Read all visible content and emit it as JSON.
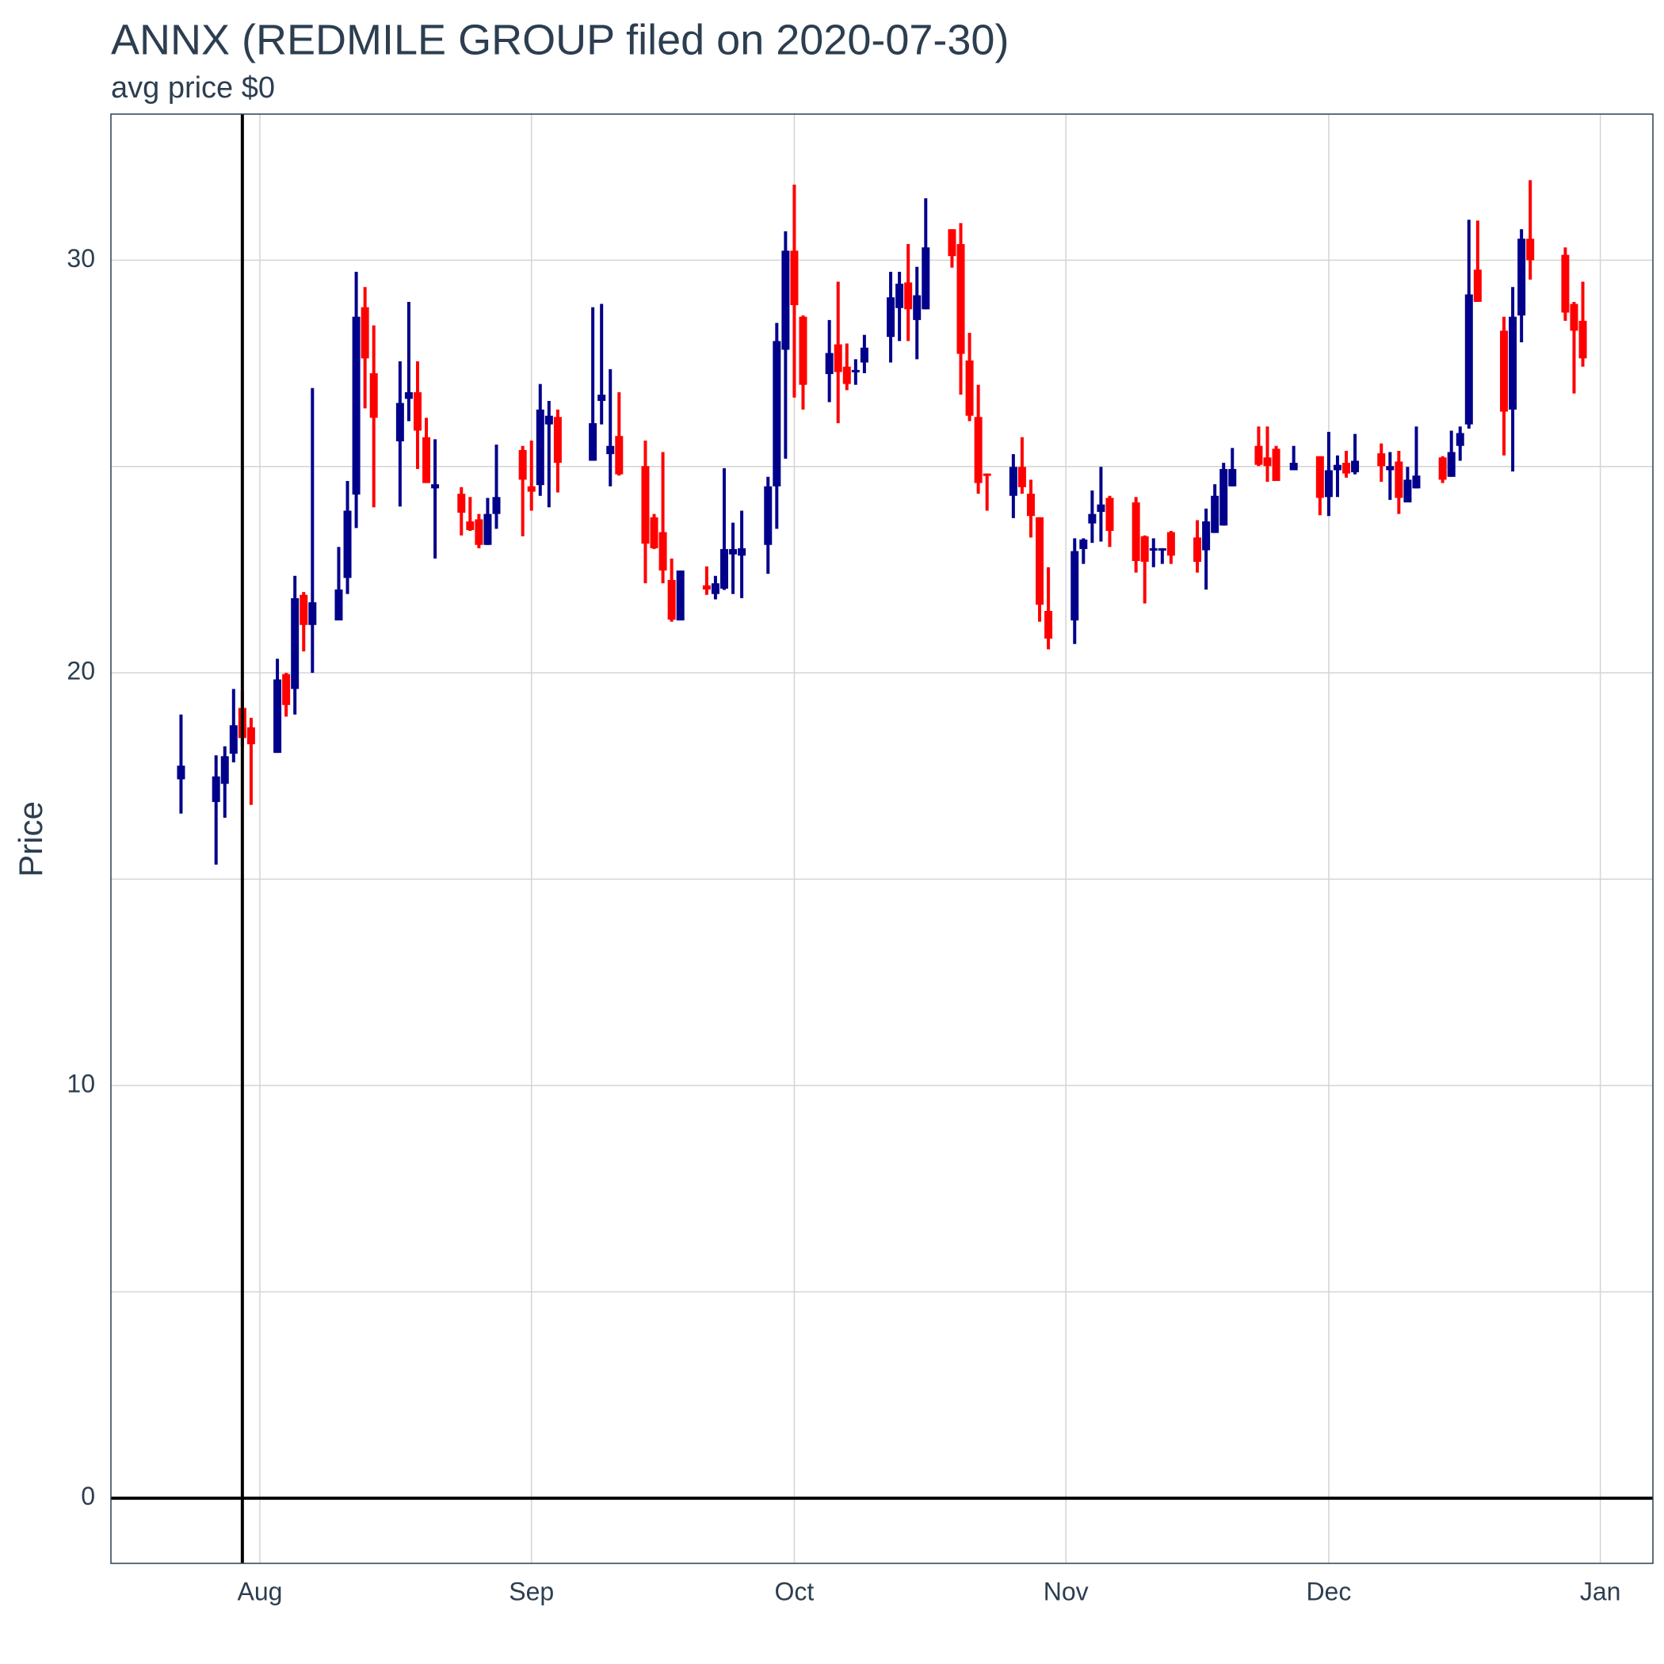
{
  "chart_data": {
    "type": "candlestick",
    "title": "ANNX (REDMILE GROUP filed on 2020-07-30)",
    "subtitle": "avg price $0",
    "ylabel": "Price",
    "x": [
      "2020-07-23",
      "2020-07-27",
      "2020-07-28",
      "2020-07-29",
      "2020-07-30",
      "2020-07-31",
      "2020-08-03",
      "2020-08-04",
      "2020-08-05",
      "2020-08-06",
      "2020-08-07",
      "2020-08-10",
      "2020-08-11",
      "2020-08-12",
      "2020-08-13",
      "2020-08-14",
      "2020-08-17",
      "2020-08-18",
      "2020-08-19",
      "2020-08-20",
      "2020-08-21",
      "2020-08-24",
      "2020-08-25",
      "2020-08-26",
      "2020-08-27",
      "2020-08-28",
      "2020-08-31",
      "2020-09-01",
      "2020-09-02",
      "2020-09-03",
      "2020-09-04",
      "2020-09-08",
      "2020-09-09",
      "2020-09-10",
      "2020-09-11",
      "2020-09-14",
      "2020-09-15",
      "2020-09-16",
      "2020-09-17",
      "2020-09-18",
      "2020-09-21",
      "2020-09-22",
      "2020-09-23",
      "2020-09-24",
      "2020-09-25",
      "2020-09-28",
      "2020-09-29",
      "2020-09-30",
      "2020-10-01",
      "2020-10-02",
      "2020-10-05",
      "2020-10-06",
      "2020-10-07",
      "2020-10-08",
      "2020-10-09",
      "2020-10-12",
      "2020-10-13",
      "2020-10-14",
      "2020-10-15",
      "2020-10-16",
      "2020-10-19",
      "2020-10-20",
      "2020-10-21",
      "2020-10-22",
      "2020-10-23",
      "2020-10-26",
      "2020-10-27",
      "2020-10-28",
      "2020-10-29",
      "2020-10-30",
      "2020-11-02",
      "2020-11-03",
      "2020-11-04",
      "2020-11-05",
      "2020-11-06",
      "2020-11-09",
      "2020-11-10",
      "2020-11-11",
      "2020-11-12",
      "2020-11-13",
      "2020-11-16",
      "2020-11-17",
      "2020-11-18",
      "2020-11-19",
      "2020-11-20",
      "2020-11-23",
      "2020-11-24",
      "2020-11-25",
      "2020-11-27",
      "2020-11-30",
      "2020-12-01",
      "2020-12-02",
      "2020-12-03",
      "2020-12-04",
      "2020-12-07",
      "2020-12-08",
      "2020-12-09",
      "2020-12-10",
      "2020-12-11",
      "2020-12-14",
      "2020-12-15",
      "2020-12-16",
      "2020-12-17",
      "2020-12-18",
      "2020-12-21",
      "2020-12-22",
      "2020-12-23",
      "2020-12-24",
      "2020-12-28",
      "2020-12-29",
      "2020-12-30"
    ],
    "open": [
      17.42,
      16.87,
      17.31,
      18.04,
      19.15,
      18.68,
      18.06,
      19.97,
      19.61,
      21.89,
      21.16,
      21.27,
      22.3,
      24.32,
      28.86,
      27.26,
      25.61,
      26.64,
      26.8,
      25.71,
      24.47,
      24.34,
      23.67,
      23.72,
      23.1,
      23.85,
      25.4,
      24.52,
      24.55,
      26.02,
      26.2,
      25.14,
      26.59,
      25.3,
      25.74,
      25.01,
      23.77,
      23.41,
      22.25,
      21.27,
      22.12,
      21.91,
      22.04,
      22.87,
      22.84,
      23.1,
      24.52,
      27.83,
      30.23,
      28.63,
      27.24,
      27.96,
      27.42,
      27.29,
      27.52,
      28.14,
      28.84,
      29.46,
      28.55,
      28.81,
      30.75,
      30.39,
      27.57,
      26.2,
      24.83,
      24.29,
      24.99,
      24.34,
      23.77,
      21.5,
      21.27,
      23.0,
      23.62,
      23.9,
      24.24,
      24.13,
      23.31,
      22.97,
      22.97,
      23.41,
      23.28,
      22.97,
      23.39,
      23.57,
      24.52,
      25.5,
      25.22,
      25.43,
      24.91,
      25.25,
      24.26,
      24.91,
      25.09,
      24.86,
      25.32,
      24.91,
      25.12,
      24.13,
      24.47,
      25.22,
      24.75,
      25.5,
      26.02,
      29.77,
      28.29,
      26.38,
      28.66,
      30.52,
      30.13,
      28.94,
      28.53
    ],
    "high": [
      18.99,
      18.0,
      18.22,
      19.61,
      19.56,
      18.91,
      20.34,
      20.0,
      22.35,
      21.96,
      26.9,
      23.05,
      24.65,
      29.72,
      29.35,
      28.42,
      27.55,
      28.99,
      27.55,
      26.18,
      25.66,
      24.5,
      24.26,
      23.85,
      24.24,
      25.53,
      25.5,
      25.63,
      27.0,
      26.59,
      26.38,
      28.86,
      28.94,
      27.36,
      26.8,
      25.63,
      23.85,
      25.35,
      22.77,
      22.48,
      22.58,
      22.35,
      24.96,
      23.64,
      23.93,
      24.75,
      28.48,
      30.7,
      31.83,
      28.66,
      28.55,
      29.48,
      27.98,
      27.6,
      28.19,
      29.72,
      29.72,
      30.39,
      29.84,
      31.5,
      30.75,
      30.9,
      28.24,
      26.98,
      24.83,
      25.3,
      25.71,
      24.68,
      23.77,
      22.56,
      23.26,
      23.26,
      24.42,
      24.99,
      24.29,
      24.26,
      23.33,
      23.26,
      23.02,
      23.44,
      23.7,
      23.98,
      24.57,
      25.09,
      25.45,
      25.97,
      25.97,
      25.5,
      25.5,
      25.25,
      25.84,
      25.27,
      25.38,
      25.79,
      25.56,
      25.35,
      25.38,
      24.99,
      25.97,
      25.25,
      25.87,
      25.97,
      30.98,
      30.96,
      28.63,
      29.35,
      30.75,
      31.94,
      30.31,
      28.99,
      29.48
    ],
    "low": [
      16.59,
      15.35,
      16.49,
      17.83,
      18.22,
      16.8,
      18.06,
      18.94,
      18.99,
      20.52,
      20.0,
      21.27,
      21.91,
      23.51,
      26.41,
      24.01,
      24.03,
      26.1,
      24.94,
      24.6,
      22.77,
      23.33,
      23.44,
      23.02,
      23.1,
      23.49,
      23.31,
      23.93,
      24.29,
      24.01,
      24.37,
      25.14,
      26.02,
      24.52,
      24.78,
      22.17,
      23.0,
      22.17,
      21.24,
      21.27,
      21.89,
      21.78,
      22.01,
      21.91,
      21.81,
      22.4,
      23.49,
      25.19,
      26.67,
      26.38,
      26.56,
      26.05,
      26.85,
      26.98,
      27.26,
      27.52,
      28.04,
      28.04,
      27.6,
      28.81,
      29.82,
      26.74,
      26.1,
      24.34,
      23.93,
      23.75,
      24.34,
      23.28,
      21.24,
      20.57,
      20.7,
      22.64,
      23.15,
      23.18,
      23.05,
      22.43,
      21.68,
      22.56,
      22.64,
      22.64,
      22.43,
      22.02,
      23.39,
      23.57,
      24.52,
      25.01,
      24.63,
      24.65,
      24.91,
      23.82,
      23.8,
      24.26,
      24.73,
      24.81,
      24.63,
      24.19,
      23.85,
      24.13,
      24.47,
      24.6,
      24.75,
      25.14,
      25.92,
      28.99,
      25.27,
      24.88,
      28.01,
      29.53,
      28.53,
      26.77,
      27.42
    ],
    "close": [
      17.75,
      17.49,
      17.98,
      18.73,
      18.42,
      18.27,
      19.84,
      19.22,
      21.81,
      21.16,
      21.71,
      22.02,
      23.93,
      28.63,
      27.62,
      26.18,
      26.54,
      26.8,
      25.87,
      24.6,
      24.57,
      23.88,
      23.46,
      23.1,
      23.85,
      24.26,
      24.68,
      24.39,
      26.38,
      26.23,
      25.09,
      26.05,
      26.74,
      25.5,
      24.81,
      23.13,
      23.02,
      22.48,
      21.29,
      22.48,
      22.02,
      22.17,
      23.0,
      23.0,
      23.02,
      24.52,
      28.04,
      30.23,
      28.91,
      26.98,
      27.75,
      27.29,
      27.0,
      27.34,
      27.88,
      29.1,
      29.43,
      28.81,
      29.15,
      30.31,
      30.1,
      27.73,
      26.23,
      24.6,
      24.78,
      24.99,
      24.5,
      23.8,
      21.65,
      20.83,
      22.95,
      23.23,
      23.85,
      24.08,
      23.44,
      22.71,
      22.69,
      23.02,
      23.02,
      22.84,
      22.69,
      23.67,
      24.29,
      24.94,
      24.94,
      25.04,
      25.01,
      24.65,
      25.09,
      24.24,
      24.91,
      25.04,
      24.83,
      25.14,
      25.01,
      25.01,
      24.24,
      24.68,
      24.78,
      24.68,
      25.35,
      25.81,
      29.17,
      28.99,
      26.33,
      28.63,
      30.52,
      30.0,
      28.73,
      28.29,
      27.62
    ],
    "up_color": "#00008b",
    "down_color": "#ff0000",
    "xlim": [
      "2020-07-15",
      "2021-01-07"
    ],
    "xticks": [
      {
        "value": "2020-08-01",
        "label": "Aug"
      },
      {
        "value": "2020-09-01",
        "label": "Sep"
      },
      {
        "value": "2020-10-01",
        "label": "Oct"
      },
      {
        "value": "2020-11-01",
        "label": "Nov"
      },
      {
        "value": "2020-12-01",
        "label": "Dec"
      },
      {
        "value": "2021-01-01",
        "label": "Jan"
      }
    ],
    "ylim": [
      -1.58,
      33.54
    ],
    "yticks": [
      0,
      10,
      20,
      30
    ],
    "minor_yticks": [
      5,
      15,
      25
    ],
    "grid": true,
    "vline_x": "2020-07-30",
    "hline_y": 0
  }
}
